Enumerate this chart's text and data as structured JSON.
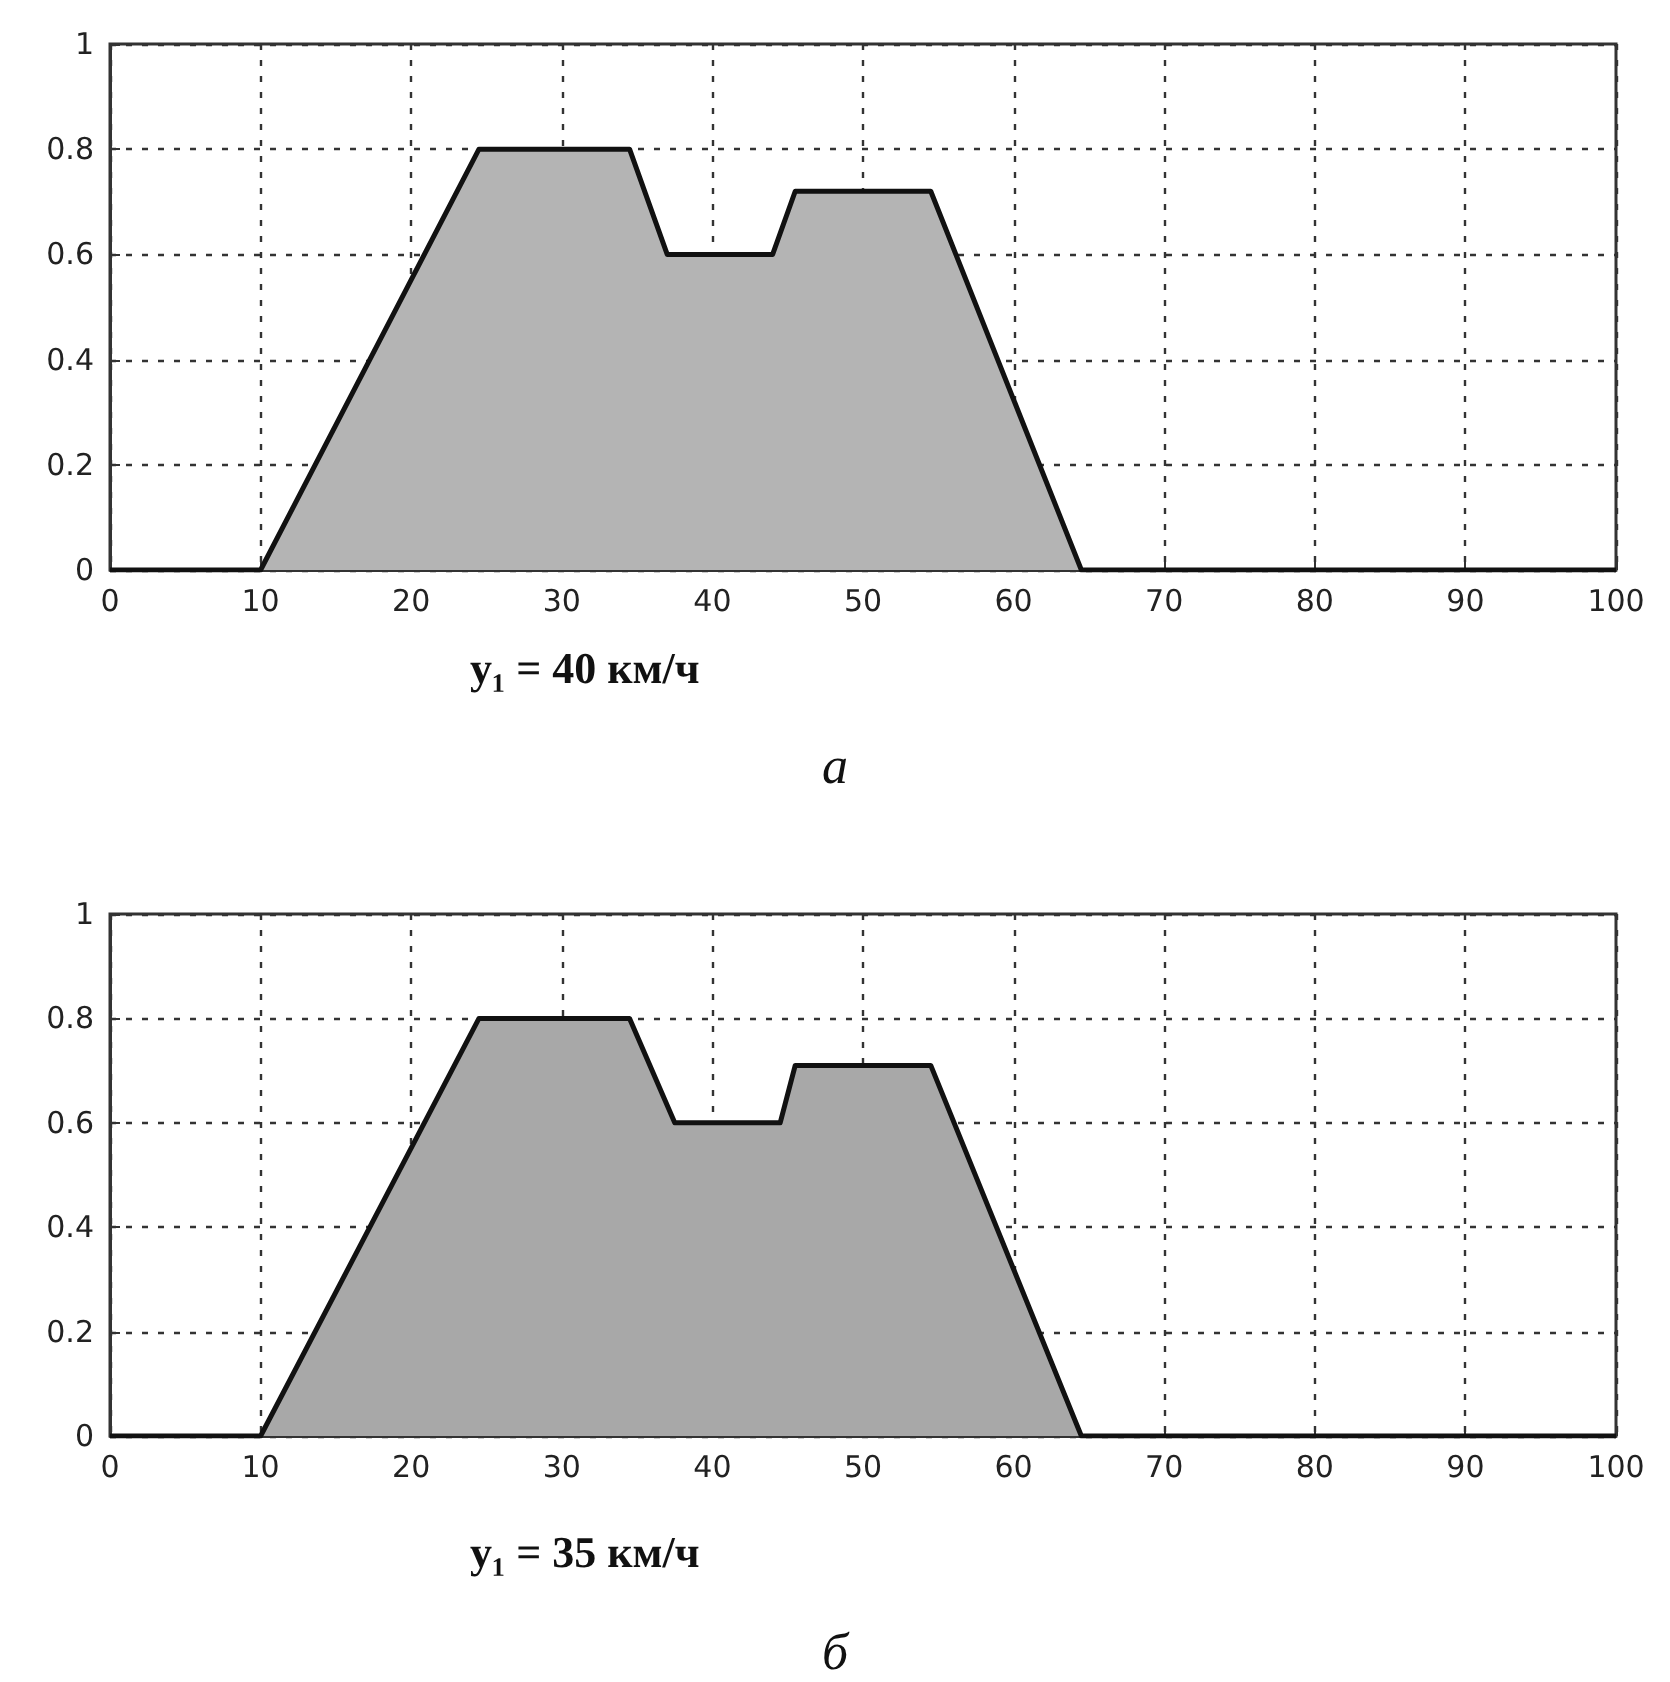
{
  "chart_data": [
    {
      "type": "area",
      "xlabel": "y₁ = 40 км/ч",
      "annotations": [
        "а"
      ],
      "x": [
        0,
        10,
        24.5,
        34.5,
        37,
        44,
        45.5,
        54.5,
        64.5,
        100
      ],
      "values": [
        0,
        0,
        0.8,
        0.8,
        0.6,
        0.6,
        0.72,
        0.72,
        0,
        0
      ],
      "color": "#b4b4b4",
      "xlim": [
        0,
        100
      ],
      "xticks": [
        0,
        10,
        20,
        30,
        40,
        50,
        60,
        70,
        80,
        90,
        100
      ],
      "ylim": [
        0,
        1
      ],
      "yticks": [
        0,
        0.2,
        0.4,
        0.6,
        0.8,
        1
      ],
      "grid": true,
      "line_style": "solid",
      "marker": "none"
    },
    {
      "type": "area",
      "xlabel": "y₁ = 35 км/ч",
      "annotations": [
        "б"
      ],
      "x": [
        0,
        10,
        24.5,
        34.5,
        37.5,
        44.5,
        45.5,
        54.5,
        64.5,
        100
      ],
      "values": [
        0,
        0,
        0.8,
        0.8,
        0.6,
        0.6,
        0.71,
        0.71,
        0,
        0
      ],
      "color": "#a8a8a8",
      "xlim": [
        0,
        100
      ],
      "xticks": [
        0,
        10,
        20,
        30,
        40,
        50,
        60,
        70,
        80,
        90,
        100
      ],
      "ylim": [
        0,
        1
      ],
      "yticks": [
        0,
        0.2,
        0.4,
        0.6,
        0.8,
        1
      ],
      "grid": true,
      "line_style": "solid",
      "marker": "none"
    }
  ]
}
